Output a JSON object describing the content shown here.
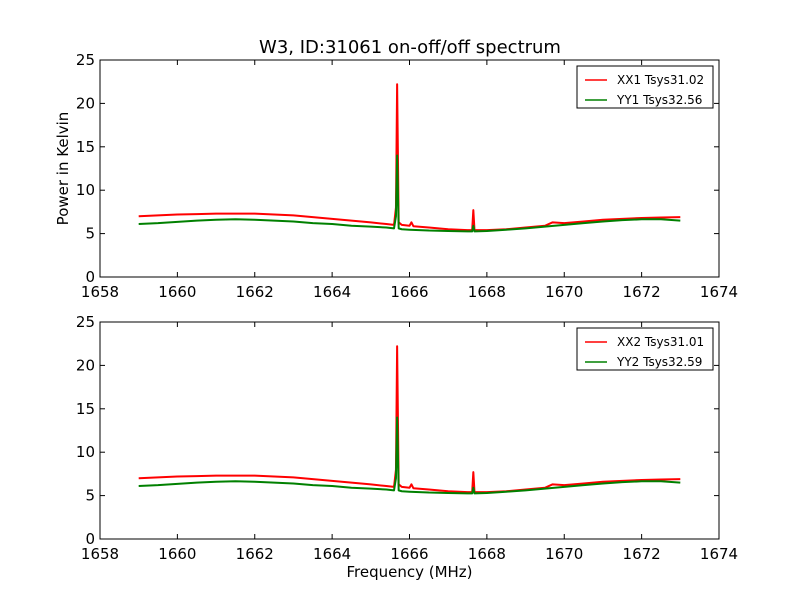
{
  "title": "W3, ID:31061 on-off/off spectrum",
  "colors": {
    "xx": "#ff0000",
    "yy": "#008000"
  },
  "chart_data": [
    {
      "type": "line",
      "title": "W3, ID:31061 on-off/off spectrum",
      "xlabel": "",
      "ylabel": "Power in Kelvin",
      "xlim": [
        1658,
        1674
      ],
      "ylim": [
        0,
        25
      ],
      "xticks": [
        1658,
        1660,
        1662,
        1664,
        1666,
        1668,
        1670,
        1672,
        1674
      ],
      "yticks": [
        0,
        5,
        10,
        15,
        20,
        25
      ],
      "grid": false,
      "legend_position": "top-right",
      "series": [
        {
          "name": "XX1 Tsys31.02",
          "color": "#ff0000",
          "x": [
            1659.0,
            1659.5,
            1660.0,
            1660.5,
            1661.0,
            1661.5,
            1662.0,
            1662.5,
            1663.0,
            1663.5,
            1664.0,
            1664.5,
            1665.0,
            1665.4,
            1665.6,
            1665.65,
            1665.68,
            1665.72,
            1665.8,
            1666.0,
            1666.05,
            1666.1,
            1666.5,
            1667.0,
            1667.5,
            1667.62,
            1667.65,
            1667.68,
            1668.0,
            1668.5,
            1669.0,
            1669.5,
            1669.7,
            1670.0,
            1670.5,
            1671.0,
            1671.5,
            1672.0,
            1672.5,
            1673.0
          ],
          "y": [
            7.0,
            7.1,
            7.2,
            7.25,
            7.3,
            7.3,
            7.3,
            7.2,
            7.1,
            6.9,
            6.7,
            6.5,
            6.3,
            6.1,
            6.0,
            8.0,
            22.2,
            6.3,
            6.0,
            5.9,
            6.3,
            5.85,
            5.7,
            5.5,
            5.4,
            5.4,
            7.7,
            5.4,
            5.4,
            5.5,
            5.7,
            5.9,
            6.3,
            6.2,
            6.4,
            6.6,
            6.7,
            6.8,
            6.85,
            6.9
          ]
        },
        {
          "name": "YY1 Tsys32.56",
          "color": "#008000",
          "x": [
            1659.0,
            1659.5,
            1660.0,
            1660.5,
            1661.0,
            1661.5,
            1662.0,
            1662.5,
            1663.0,
            1663.5,
            1664.0,
            1664.5,
            1665.0,
            1665.4,
            1665.6,
            1665.65,
            1665.68,
            1665.72,
            1665.8,
            1666.0,
            1666.5,
            1667.0,
            1667.5,
            1667.62,
            1667.65,
            1667.68,
            1668.0,
            1668.5,
            1669.0,
            1669.5,
            1670.0,
            1670.5,
            1671.0,
            1671.5,
            1672.0,
            1672.5,
            1673.0
          ],
          "y": [
            6.1,
            6.2,
            6.35,
            6.5,
            6.6,
            6.65,
            6.6,
            6.5,
            6.4,
            6.2,
            6.1,
            5.9,
            5.8,
            5.7,
            5.6,
            7.0,
            14.0,
            5.6,
            5.5,
            5.45,
            5.35,
            5.3,
            5.25,
            5.25,
            5.9,
            5.25,
            5.3,
            5.45,
            5.6,
            5.8,
            6.0,
            6.2,
            6.4,
            6.55,
            6.65,
            6.65,
            6.5
          ]
        }
      ]
    },
    {
      "type": "line",
      "title": "",
      "xlabel": "Frequency (MHz)",
      "ylabel": "",
      "xlim": [
        1658,
        1674
      ],
      "ylim": [
        0,
        25
      ],
      "xticks": [
        1658,
        1660,
        1662,
        1664,
        1666,
        1668,
        1670,
        1672,
        1674
      ],
      "yticks": [
        0,
        5,
        10,
        15,
        20,
        25
      ],
      "grid": false,
      "legend_position": "top-right",
      "series": [
        {
          "name": "XX2 Tsys31.01",
          "color": "#ff0000",
          "x": [
            1659.0,
            1659.5,
            1660.0,
            1660.5,
            1661.0,
            1661.5,
            1662.0,
            1662.5,
            1663.0,
            1663.5,
            1664.0,
            1664.5,
            1665.0,
            1665.4,
            1665.6,
            1665.65,
            1665.68,
            1665.72,
            1665.8,
            1666.0,
            1666.05,
            1666.1,
            1666.5,
            1667.0,
            1667.5,
            1667.62,
            1667.65,
            1667.68,
            1668.0,
            1668.5,
            1669.0,
            1669.5,
            1669.7,
            1670.0,
            1670.5,
            1671.0,
            1671.5,
            1672.0,
            1672.5,
            1673.0
          ],
          "y": [
            7.0,
            7.1,
            7.2,
            7.25,
            7.3,
            7.3,
            7.3,
            7.2,
            7.1,
            6.9,
            6.7,
            6.5,
            6.3,
            6.1,
            6.0,
            8.0,
            22.2,
            6.3,
            6.0,
            5.9,
            6.3,
            5.85,
            5.7,
            5.5,
            5.4,
            5.4,
            7.7,
            5.4,
            5.4,
            5.5,
            5.7,
            5.9,
            6.3,
            6.2,
            6.4,
            6.6,
            6.7,
            6.8,
            6.85,
            6.9
          ]
        },
        {
          "name": "YY2 Tsys32.59",
          "color": "#008000",
          "x": [
            1659.0,
            1659.5,
            1660.0,
            1660.5,
            1661.0,
            1661.5,
            1662.0,
            1662.5,
            1663.0,
            1663.5,
            1664.0,
            1664.5,
            1665.0,
            1665.4,
            1665.6,
            1665.65,
            1665.68,
            1665.72,
            1665.8,
            1666.0,
            1666.5,
            1667.0,
            1667.5,
            1667.62,
            1667.65,
            1667.68,
            1668.0,
            1668.5,
            1669.0,
            1669.5,
            1670.0,
            1670.5,
            1671.0,
            1671.5,
            1672.0,
            1672.5,
            1673.0
          ],
          "y": [
            6.1,
            6.2,
            6.35,
            6.5,
            6.6,
            6.65,
            6.6,
            6.5,
            6.4,
            6.2,
            6.1,
            5.9,
            5.8,
            5.7,
            5.6,
            7.0,
            14.0,
            5.6,
            5.5,
            5.45,
            5.35,
            5.3,
            5.25,
            5.25,
            5.9,
            5.25,
            5.3,
            5.45,
            5.6,
            5.8,
            6.0,
            6.2,
            6.4,
            6.55,
            6.65,
            6.65,
            6.5
          ]
        }
      ]
    }
  ]
}
